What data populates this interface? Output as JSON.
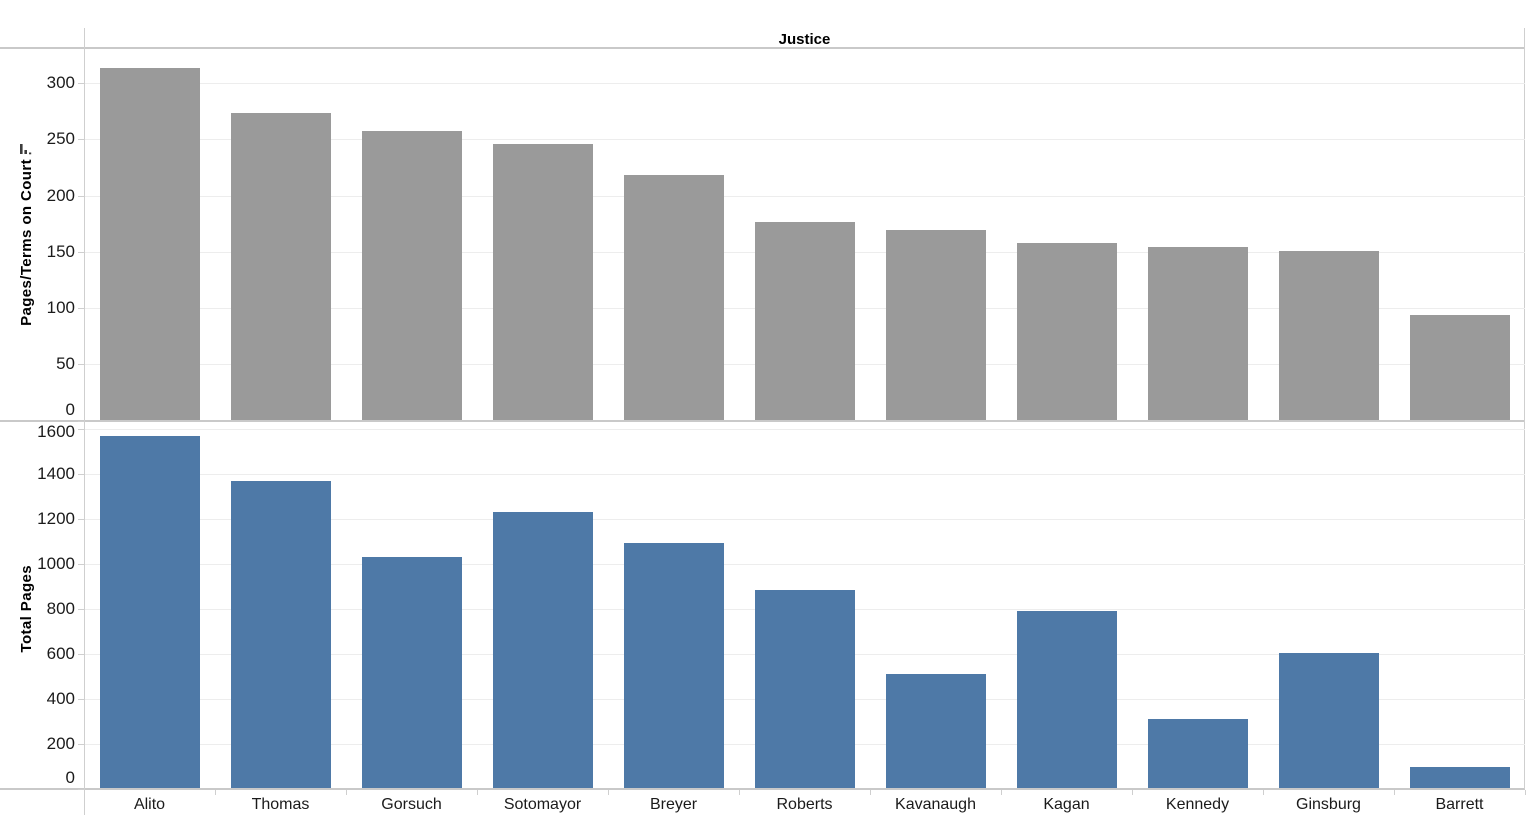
{
  "header": {
    "title": "Justice"
  },
  "colors": {
    "top_bar": "#9a9a9a",
    "bottom_bar": "#4e79a7",
    "gridline": "#ededed",
    "axis_line": "#c9c9c9",
    "text": "#1b1b1b"
  },
  "icons": {
    "sort_icon": "descending-bars-sort-indicator"
  },
  "chart_data": [
    {
      "type": "bar",
      "pane": "top",
      "ylabel": "Pages/Terms on Court",
      "sort_icon": "descending-bars-sort-indicator",
      "categories": [
        "Alito",
        "Thomas",
        "Gorsuch",
        "Sotomayor",
        "Breyer",
        "Roberts",
        "Kavanaugh",
        "Kagan",
        "Kennedy",
        "Ginsburg",
        "Barrett"
      ],
      "values": [
        313,
        273,
        257,
        245,
        218,
        176,
        169,
        157,
        154,
        150,
        93
      ],
      "yticks": [
        0,
        50,
        100,
        150,
        200,
        250,
        300
      ],
      "ylim": [
        0,
        331
      ],
      "grid": true,
      "legend": "none",
      "bar_color": "#9a9a9a"
    },
    {
      "type": "bar",
      "pane": "bottom",
      "ylabel": "Total Pages",
      "categories": [
        "Alito",
        "Thomas",
        "Gorsuch",
        "Sotomayor",
        "Breyer",
        "Roberts",
        "Kavanaugh",
        "Kagan",
        "Kennedy",
        "Ginsburg",
        "Barrett"
      ],
      "values": [
        1565,
        1365,
        1028,
        1225,
        1090,
        880,
        507,
        785,
        308,
        600,
        93
      ],
      "yticks": [
        0,
        200,
        400,
        600,
        800,
        1000,
        1200,
        1400,
        1600
      ],
      "ylim": [
        0,
        1632
      ],
      "grid": true,
      "legend": "none",
      "bar_color": "#4e79a7"
    }
  ]
}
